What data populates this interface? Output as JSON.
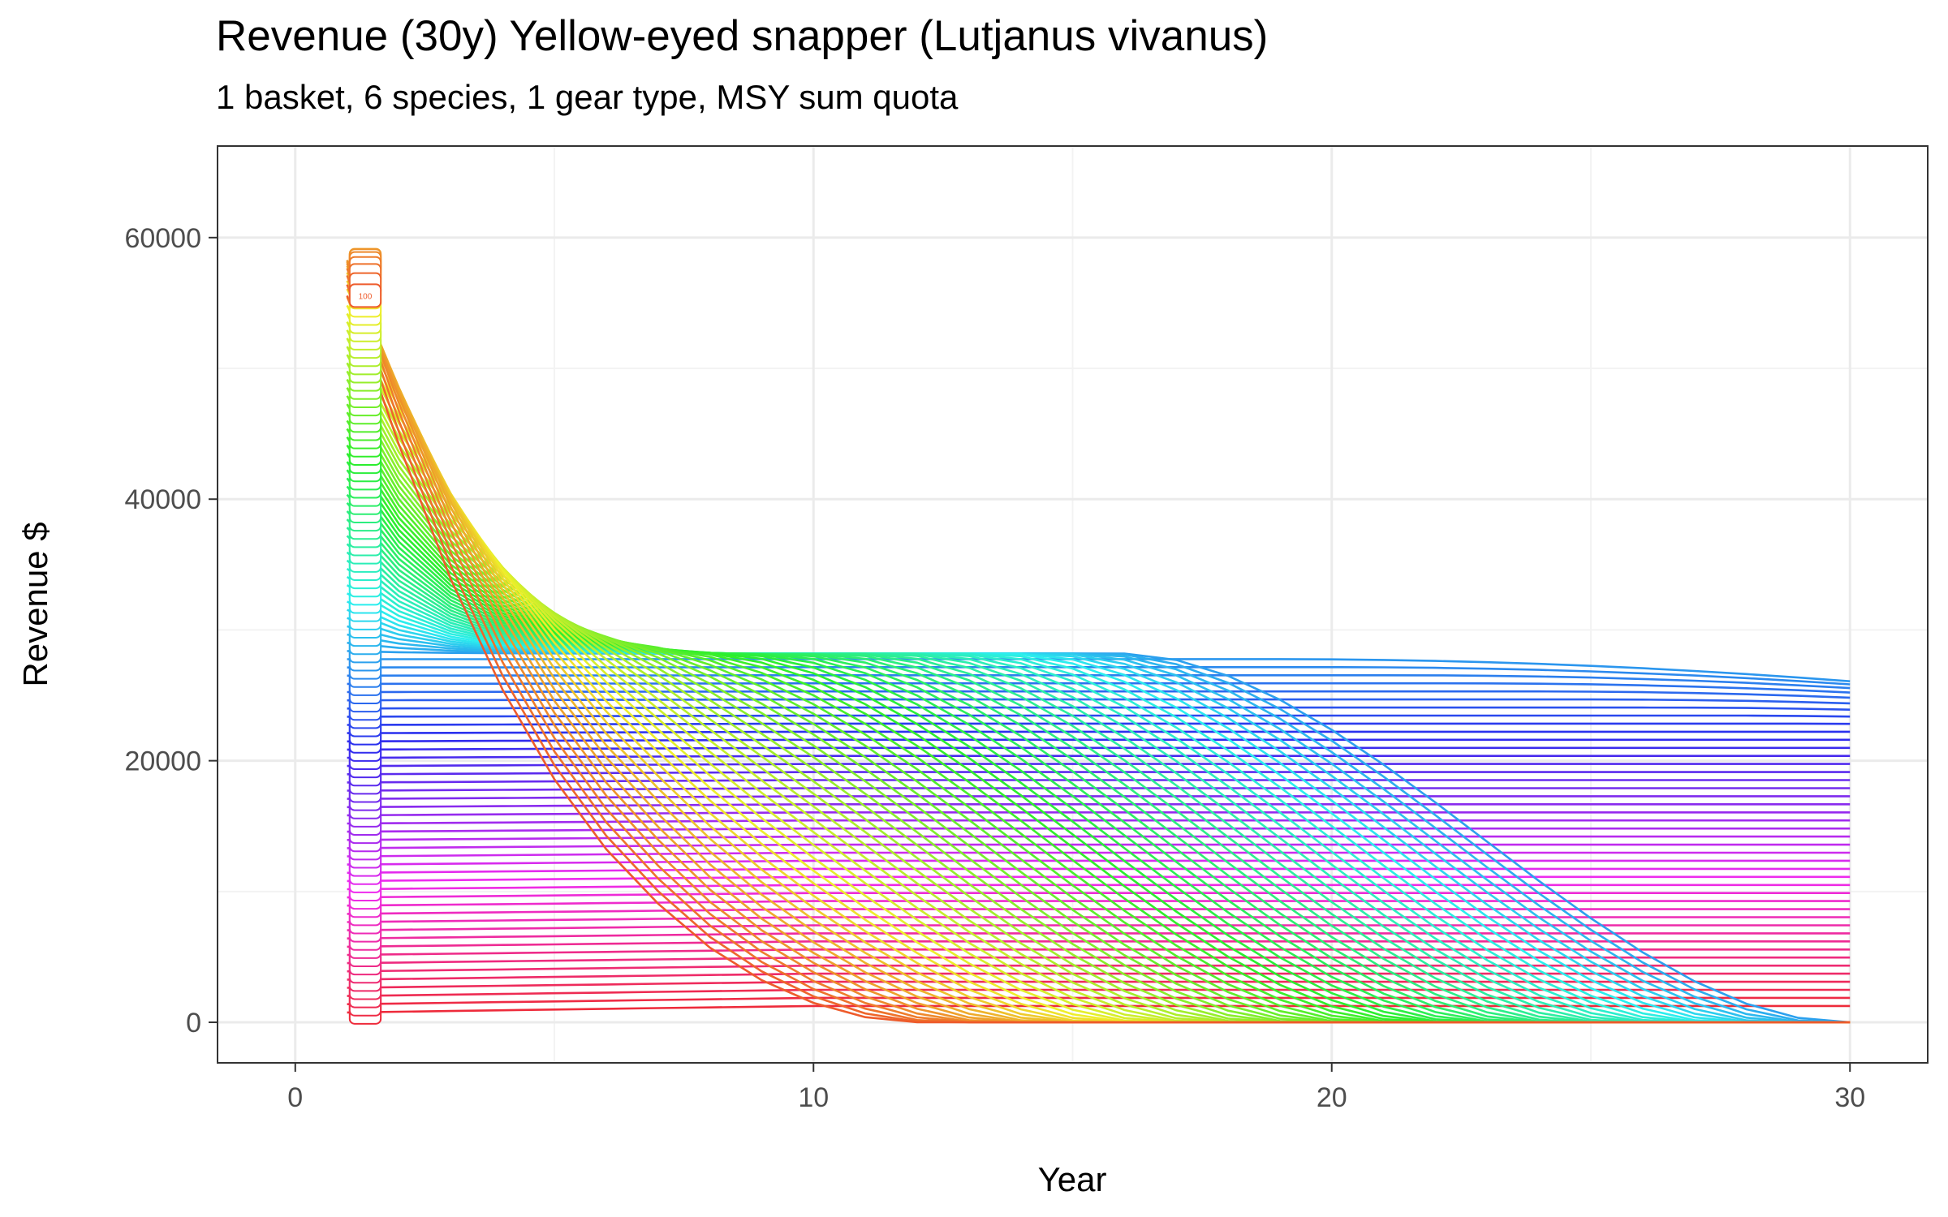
{
  "chart_data": {
    "type": "line",
    "title": "Revenue (30y) Yellow-eyed snapper (Lutjanus vivanus)",
    "subtitle": "1 basket, 6 species, 1 gear type, MSY sum quota",
    "xlabel": "Year",
    "ylabel": "Revenue $",
    "xlim": [
      -1.5,
      31.5
    ],
    "ylim": [
      -3100,
      67000
    ],
    "x_ticks": [
      0,
      10,
      20,
      30
    ],
    "y_ticks": [
      0,
      20000,
      40000,
      60000
    ],
    "grid": true,
    "legend": "none",
    "x": [
      1,
      2,
      3,
      4,
      5,
      6,
      7,
      8,
      9,
      10,
      11,
      12,
      13,
      14,
      15,
      16,
      17,
      18,
      19,
      20,
      21,
      22,
      23,
      24,
      25,
      26,
      27,
      28,
      29,
      30
    ],
    "series_count": 100,
    "series_generation": "Each of the 100 effort-level series is drawn from the approximate envelope read off the chart: low-effort series stay nearly flat; mid-effort series converge to a plateau near 28000; high-effort series rise to about 64000 at year 2 then collapse to 0 by about year 12.",
    "series_samples": [
      {
        "name": "1",
        "values": [
          700,
          700,
          700,
          700,
          700,
          700,
          700,
          700,
          700,
          700,
          700,
          700,
          700,
          700,
          700,
          700,
          700,
          700,
          700,
          700,
          700,
          700,
          700,
          700,
          700,
          700,
          700,
          700,
          700,
          700
        ]
      },
      {
        "name": "45",
        "values": [
          28200,
          28200,
          28200,
          28200,
          28200,
          28200,
          28200,
          28200,
          28200,
          28200,
          28100,
          28000,
          27900,
          27800,
          27600,
          27400,
          27100,
          26800,
          26500,
          26100,
          25600,
          25100,
          24500,
          23900,
          23200,
          22400,
          21600,
          20700,
          19800,
          18800
        ]
      },
      {
        "name": "60",
        "values": [
          37500,
          37500,
          37400,
          37300,
          37200,
          37000,
          36800,
          36500,
          36200,
          35800,
          35300,
          34800,
          34200,
          33500,
          32800,
          32000,
          31000,
          29900,
          28600,
          27100,
          25400,
          23500,
          21300,
          18800,
          16100,
          13100,
          9900,
          6500,
          3200,
          0
        ]
      },
      {
        "name": "100",
        "values": [
          63000,
          64500,
          64000,
          62000,
          58000,
          52500,
          46000,
          33000,
          18000,
          7000,
          1200,
          0,
          0,
          0,
          0,
          0,
          0,
          0,
          0,
          0,
          0,
          0,
          0,
          0,
          0,
          0,
          0,
          0,
          0,
          0
        ]
      }
    ],
    "label_text": "100"
  }
}
